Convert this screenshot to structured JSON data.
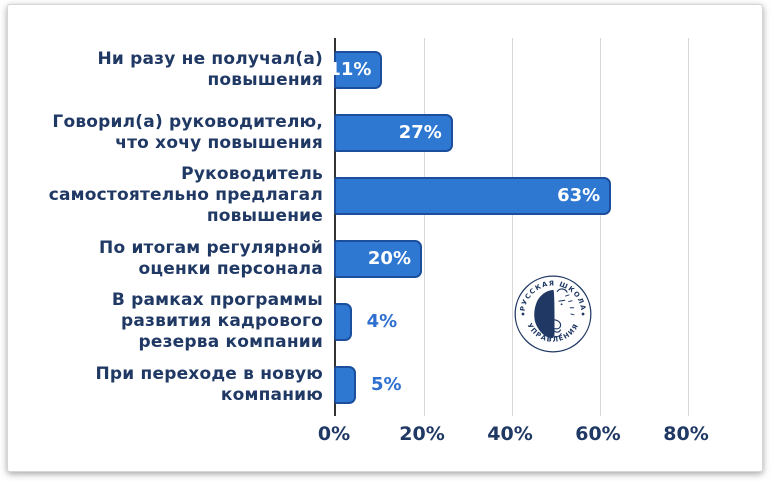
{
  "chart_data": {
    "type": "bar",
    "orientation": "horizontal",
    "title": "",
    "xlabel": "",
    "ylabel": "",
    "xlim": [
      0,
      90
    ],
    "grid": "vertical",
    "legend": "none",
    "categories": [
      "Ни разу не получал(а) повышения",
      "Говорил(а) руководителю, что хочу повышения",
      "Руководитель самостоятельно предлагал повышение",
      "По итогам регулярной оценки персонала",
      "В рамках программы развития кадрового резерва компании",
      "При переходе в новую компанию"
    ],
    "categories_lines": [
      [
        "Ни разу не получал(а)",
        "повышения"
      ],
      [
        "Говорил(а) руководителю,",
        "что хочу повышения"
      ],
      [
        "Руководитель",
        "самостоятельно предлагал",
        "повышение"
      ],
      [
        "По итогам регулярной",
        "оценки персонала"
      ],
      [
        "В рамках программы",
        "развития кадрового",
        "резерва компании"
      ],
      [
        "При переходе в новую",
        "компанию"
      ]
    ],
    "values": [
      11,
      27,
      63,
      20,
      4,
      5
    ],
    "value_labels": [
      "11%",
      "27%",
      "63%",
      "20%",
      "4%",
      "5%"
    ],
    "value_label_inside": [
      true,
      true,
      true,
      true,
      false,
      false
    ],
    "ticks": [
      {
        "value": 0,
        "label": "0%"
      },
      {
        "value": 20,
        "label": "20%"
      },
      {
        "value": 40,
        "label": "40%"
      },
      {
        "value": 60,
        "label": "60%"
      },
      {
        "value": 80,
        "label": "80%"
      }
    ],
    "colors": {
      "bar_fill": "#2e78d2",
      "bar_border": "#1b4f9e",
      "category_text": "#1f3864",
      "tick_text": "#1f3864",
      "value_inside": "#ffffff",
      "value_outside": "#2e6fd0",
      "gridline": "#d8d8d8",
      "axis_line": "#333333"
    }
  },
  "logo": {
    "top_text": "РУССКАЯ ШКОЛА",
    "bottom_text": "УПРАВЛЕНИЯ",
    "color": "#1f3864"
  }
}
